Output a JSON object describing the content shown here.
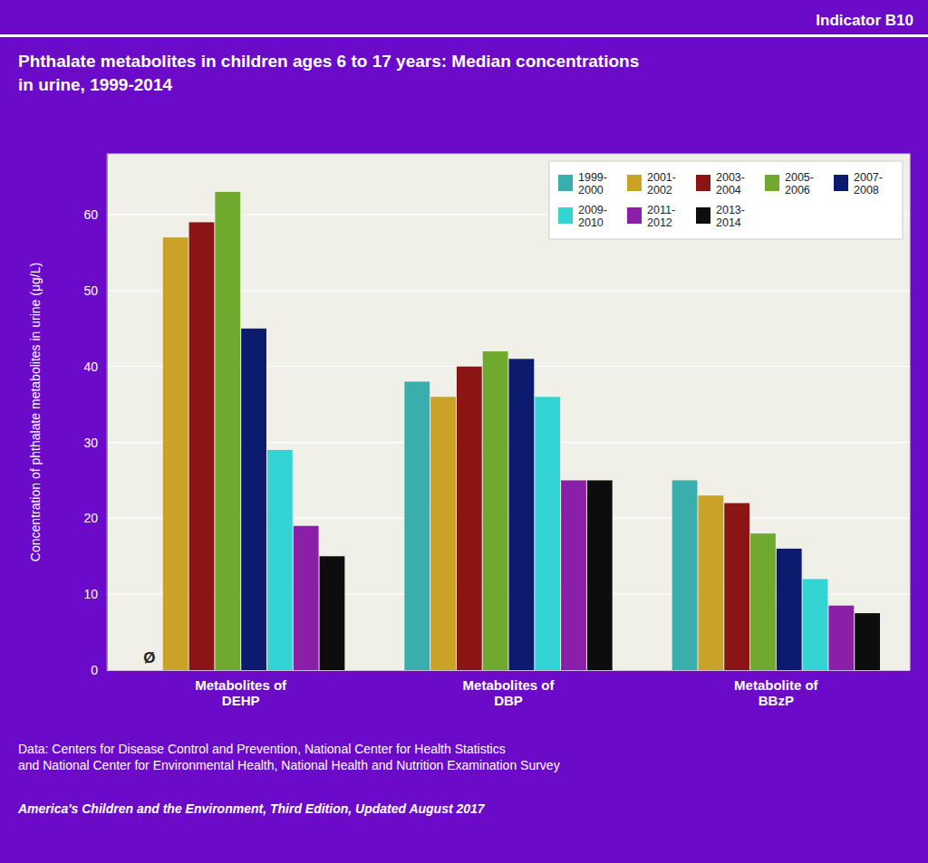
{
  "chart_data": {
    "type": "bar",
    "title": "Phthalate metabolites in children ages 6 to 17 years: Median concentrations\nin urine, 1999-2014",
    "y_label": "Concentration of phthalate metabolites in urine (μg/L)",
    "annotations": [
      "Indicator B10",
      "Ø",
      "Data: Centers for Disease Control and Prevention, National Center for Health Statistics\nand National Center for Environmental Health, National Health and Nutrition Examination Survey",
      "America's Children and the Environment, Third Edition, Updated August 2017"
    ],
    "categories": [
      "Metabolites of\nDEHP",
      "Metabolites of\nDBP",
      "Metabolite of\nBBzP"
    ],
    "series": [
      {
        "name": "1999-\n2000",
        "color": "#3aadad",
        "values": [
          null,
          38,
          25
        ]
      },
      {
        "name": "2001-\n2002",
        "color": "#c9a227",
        "values": [
          57,
          36,
          23
        ]
      },
      {
        "name": "2003-\n2004",
        "color": "#8b1515",
        "values": [
          59,
          40,
          22
        ]
      },
      {
        "name": "2005-\n2006",
        "color": "#6faa2e",
        "values": [
          63,
          42,
          18
        ]
      },
      {
        "name": "2007-\n2008",
        "color": "#0d1b6e",
        "values": [
          45,
          41,
          16
        ]
      },
      {
        "name": "2009-\n2010",
        "color": "#35d4d4",
        "values": [
          29,
          36,
          12
        ]
      },
      {
        "name": "2011-\n2012",
        "color": "#8b1fa8",
        "values": [
          19,
          25,
          8.5
        ]
      },
      {
        "name": "2013-\n2014",
        "color": "#0d0d0d",
        "values": [
          15,
          25,
          7.5
        ]
      }
    ],
    "ylim": [
      0,
      68
    ],
    "yticks": [
      0,
      10,
      20,
      30,
      40,
      50,
      60
    ],
    "grid": true,
    "legend": "top-right"
  }
}
